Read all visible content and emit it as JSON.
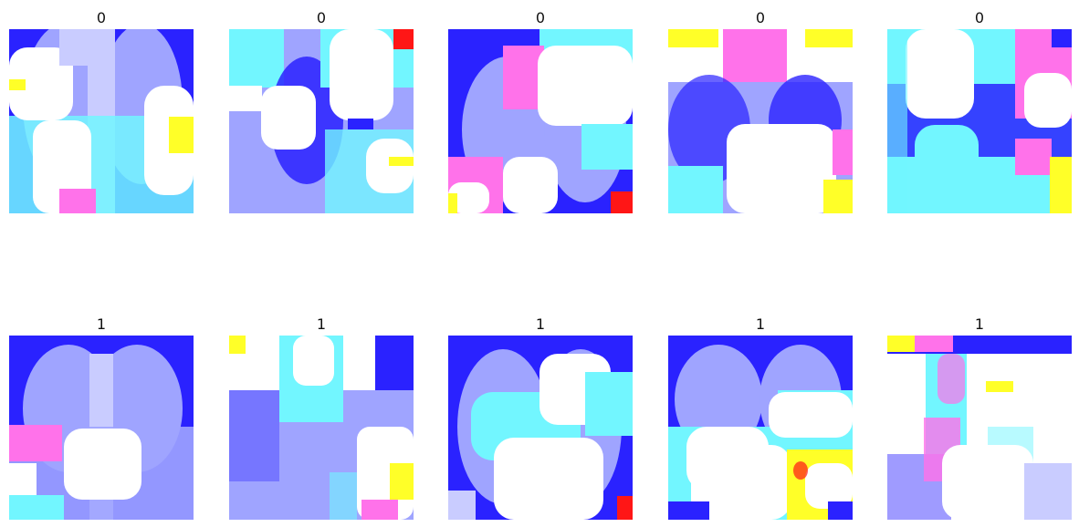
{
  "figure": {
    "rows": [
      {
        "panels": [
          {
            "title": "0"
          },
          {
            "title": "0"
          },
          {
            "title": "0"
          },
          {
            "title": "0"
          },
          {
            "title": "0"
          }
        ]
      },
      {
        "panels": [
          {
            "title": "1"
          },
          {
            "title": "1"
          },
          {
            "title": "1"
          },
          {
            "title": "1"
          },
          {
            "title": "1"
          }
        ]
      }
    ]
  },
  "colors": {
    "background": "#ffffff",
    "xray_blue": "#2a22ff",
    "cyan_patch": "#72f6ff",
    "magenta_patch": "#ff72ea",
    "yellow_patch": "#ffff28",
    "red_patch": "#ff1616",
    "white_patch": "#ffffff"
  }
}
